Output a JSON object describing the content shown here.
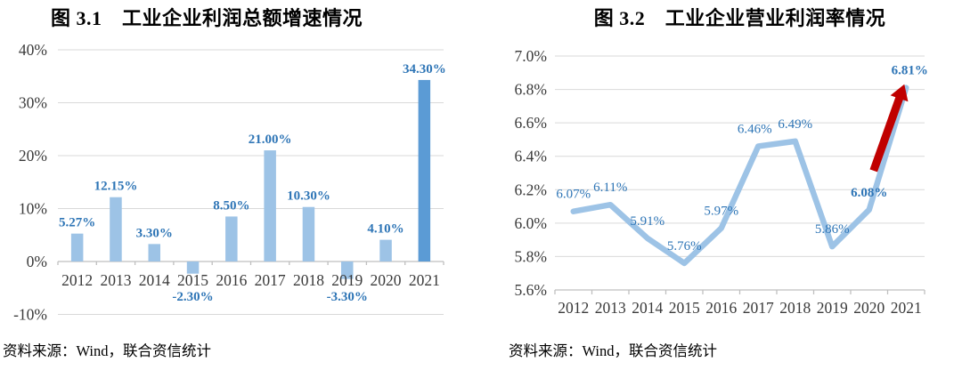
{
  "chart_data": [
    {
      "type": "bar",
      "title": "图 3.1　工业企业利润总额增速情况",
      "source": "资料来源：Wind，联合资信统计",
      "categories": [
        "2012",
        "2013",
        "2014",
        "2015",
        "2016",
        "2017",
        "2018",
        "2019",
        "2020",
        "2021"
      ],
      "values": [
        5.27,
        12.15,
        3.3,
        -2.3,
        8.5,
        21.0,
        10.3,
        -3.3,
        4.1,
        34.3
      ],
      "value_labels": [
        "5.27%",
        "12.15%",
        "3.30%",
        "-2.30%",
        "8.50%",
        "21.00%",
        "10.30%",
        "-3.30%",
        "4.10%",
        "34.30%"
      ],
      "highlight_index": 9,
      "ylim": [
        -10,
        40
      ],
      "yticks": [
        {
          "value": 40,
          "label": "40%"
        },
        {
          "value": 30,
          "label": "30%"
        },
        {
          "value": 20,
          "label": "20%"
        },
        {
          "value": 10,
          "label": "10%"
        },
        {
          "value": 0,
          "label": "0%"
        },
        {
          "value": -10,
          "label": "-10%"
        }
      ],
      "grid": true,
      "legend": "none",
      "colors": {
        "bar": "#9DC3E6",
        "highlight_bar": "#5B9BD5",
        "value_label": "#2E75B6",
        "grid": "#D9D9D9",
        "axis": "#BFBFBF",
        "axis_text": "#3A3A3A"
      }
    },
    {
      "type": "line",
      "title": "图 3.2　工业企业营业利润率情况",
      "source": "资料来源：Wind，联合资信统计",
      "categories": [
        "2012",
        "2013",
        "2014",
        "2015",
        "2016",
        "2017",
        "2018",
        "2019",
        "2020",
        "2021"
      ],
      "values": [
        6.07,
        6.11,
        5.91,
        5.76,
        5.97,
        6.46,
        6.49,
        5.86,
        6.08,
        6.81
      ],
      "value_labels": [
        "6.07%",
        "6.11%",
        "5.91%",
        "5.76%",
        "5.97%",
        "6.46%",
        "6.49%",
        "5.86%",
        "6.08%",
        "6.81%"
      ],
      "emphasized_label_indexes": [
        8,
        9
      ],
      "ylim": [
        5.6,
        7.0
      ],
      "yticks": [
        {
          "value": 7.0,
          "label": "7.0%"
        },
        {
          "value": 6.8,
          "label": "6.8%"
        },
        {
          "value": 6.6,
          "label": "6.6%"
        },
        {
          "value": 6.4,
          "label": "6.4%"
        },
        {
          "value": 6.2,
          "label": "6.2%"
        },
        {
          "value": 6.0,
          "label": "6.0%"
        },
        {
          "value": 5.8,
          "label": "5.8%"
        },
        {
          "value": 5.6,
          "label": "5.6%"
        }
      ],
      "grid": true,
      "legend": "none",
      "annotation": {
        "type": "up-arrow",
        "color": "#C00000",
        "from_year": "2020",
        "to_year": "2021"
      },
      "colors": {
        "line": "#9DC3E6",
        "value_label": "#2E75B6",
        "grid": "#D9D9D9",
        "axis": "#BFBFBF",
        "axis_text": "#3A3A3A"
      }
    }
  ]
}
